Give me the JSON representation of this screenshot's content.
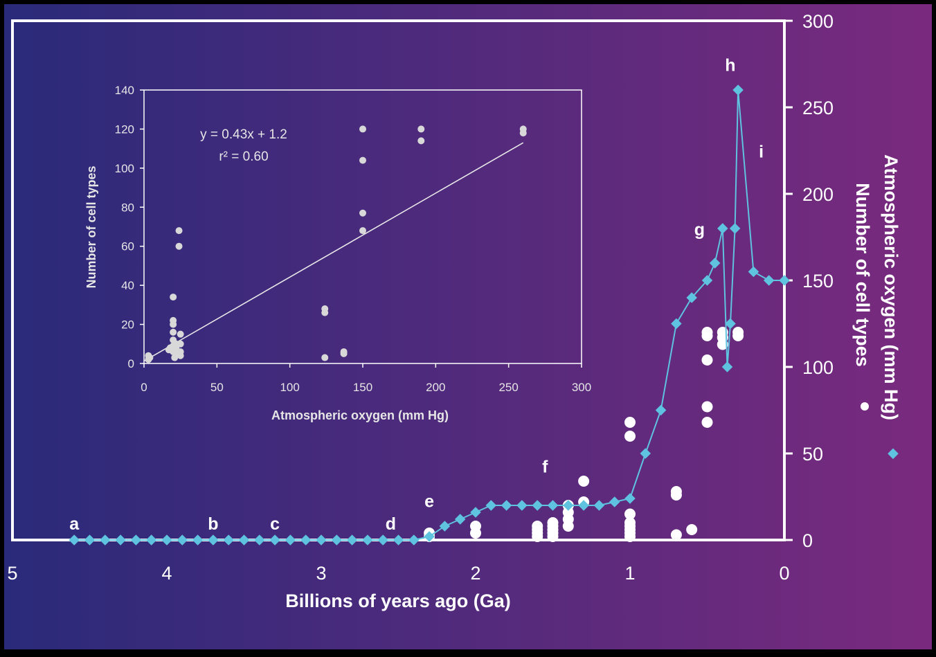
{
  "colors": {
    "bg_left": "#2a2a7a",
    "bg_right": "#7a2a7e",
    "frame": "#ffffff",
    "oxygen_series": "#5fc3df",
    "cells_series": "#ffffff",
    "inset_frame": "#ffffff",
    "inset_points": "#d8d8d8",
    "inset_text": "#e6e6e6"
  },
  "chart_data": [
    {
      "type": "line",
      "title": "",
      "xlabel": "Billions of years ago (Ga)",
      "ylabel": "Atmospheric oxygen (mm Hg)",
      "ylabel2": "Number of cell types",
      "xlim": [
        5,
        0
      ],
      "ylim": [
        0,
        300
      ],
      "x_ticks": [
        "5",
        "4",
        "3",
        "2",
        "1",
        "0"
      ],
      "y_ticks": [
        "0",
        "50",
        "100",
        "150",
        "200",
        "250",
        "300"
      ],
      "series": [
        {
          "name": "Atmospheric oxygen (mm Hg)",
          "marker": "diamond",
          "points": [
            [
              4.6,
              0
            ],
            [
              4.5,
              0
            ],
            [
              4.4,
              0
            ],
            [
              4.3,
              0
            ],
            [
              4.2,
              0
            ],
            [
              4.1,
              0
            ],
            [
              4.0,
              0
            ],
            [
              3.9,
              0
            ],
            [
              3.8,
              0
            ],
            [
              3.7,
              0
            ],
            [
              3.6,
              0
            ],
            [
              3.5,
              0
            ],
            [
              3.4,
              0
            ],
            [
              3.3,
              0
            ],
            [
              3.2,
              0
            ],
            [
              3.1,
              0
            ],
            [
              3.0,
              0
            ],
            [
              2.9,
              0
            ],
            [
              2.8,
              0
            ],
            [
              2.7,
              0
            ],
            [
              2.6,
              0
            ],
            [
              2.5,
              0
            ],
            [
              2.4,
              0
            ],
            [
              2.3,
              2
            ],
            [
              2.2,
              8
            ],
            [
              2.1,
              12
            ],
            [
              2.0,
              16
            ],
            [
              1.9,
              20
            ],
            [
              1.8,
              20
            ],
            [
              1.7,
              20
            ],
            [
              1.6,
              20
            ],
            [
              1.5,
              20
            ],
            [
              1.4,
              20
            ],
            [
              1.3,
              20
            ],
            [
              1.2,
              20
            ],
            [
              1.1,
              22
            ],
            [
              1.0,
              24
            ],
            [
              0.9,
              50
            ],
            [
              0.8,
              75
            ],
            [
              0.7,
              125
            ],
            [
              0.6,
              140
            ],
            [
              0.5,
              150
            ],
            [
              0.45,
              160
            ],
            [
              0.4,
              180
            ],
            [
              0.37,
              100
            ],
            [
              0.35,
              125
            ],
            [
              0.32,
              180
            ],
            [
              0.3,
              260
            ],
            [
              0.2,
              155
            ],
            [
              0.1,
              150
            ],
            [
              0.0,
              150
            ]
          ]
        },
        {
          "name": "Number of cell types",
          "marker": "circle",
          "points": [
            [
              2.3,
              2
            ],
            [
              2.3,
              4
            ],
            [
              2.0,
              4
            ],
            [
              2.0,
              8
            ],
            [
              1.6,
              2
            ],
            [
              1.6,
              4
            ],
            [
              1.6,
              6
            ],
            [
              1.6,
              8
            ],
            [
              1.5,
              2
            ],
            [
              1.5,
              4
            ],
            [
              1.5,
              6
            ],
            [
              1.5,
              8
            ],
            [
              1.5,
              10
            ],
            [
              1.4,
              8
            ],
            [
              1.4,
              12
            ],
            [
              1.4,
              16
            ],
            [
              1.4,
              20
            ],
            [
              1.3,
              22
            ],
            [
              1.3,
              34
            ],
            [
              1.0,
              2
            ],
            [
              1.0,
              4
            ],
            [
              1.0,
              6
            ],
            [
              1.0,
              8
            ],
            [
              1.0,
              10
            ],
            [
              1.0,
              15
            ],
            [
              1.0,
              60
            ],
            [
              1.0,
              68
            ],
            [
              0.7,
              3
            ],
            [
              0.7,
              26
            ],
            [
              0.7,
              28
            ],
            [
              0.6,
              6
            ],
            [
              0.5,
              68
            ],
            [
              0.5,
              77
            ],
            [
              0.5,
              104
            ],
            [
              0.5,
              118
            ],
            [
              0.5,
              120
            ],
            [
              0.4,
              113
            ],
            [
              0.4,
              117
            ],
            [
              0.4,
              120
            ],
            [
              0.3,
              118
            ],
            [
              0.3,
              120
            ]
          ]
        }
      ],
      "annotations": [
        {
          "label": "a",
          "x": 4.6,
          "y": 10
        },
        {
          "label": "b",
          "x": 3.7,
          "y": 10
        },
        {
          "label": "c",
          "x": 3.3,
          "y": 10
        },
        {
          "label": "d",
          "x": 2.55,
          "y": 10
        },
        {
          "label": "e",
          "x": 2.3,
          "y": 23
        },
        {
          "label": "f",
          "x": 1.55,
          "y": 43
        },
        {
          "label": "g",
          "x": 0.55,
          "y": 180
        },
        {
          "label": "h",
          "x": 0.35,
          "y": 275
        },
        {
          "label": "i",
          "x": 0.15,
          "y": 225
        }
      ],
      "legend": "right side, vertical axis label"
    },
    {
      "type": "scatter",
      "title": "",
      "xlabel": "Atmospheric oxygen (mm Hg)",
      "ylabel": "Number of cell types",
      "xlim": [
        0,
        300
      ],
      "ylim": [
        0,
        140
      ],
      "x_ticks": [
        "0",
        "50",
        "100",
        "150",
        "200",
        "250",
        "300"
      ],
      "y_ticks": [
        "0",
        "20",
        "40",
        "60",
        "80",
        "100",
        "120",
        "140"
      ],
      "equation": "y = 0.43x + 1.2",
      "r2": "r² = 0.60",
      "fit": {
        "slope": 0.43,
        "intercept": 1.2,
        "x_range": [
          0,
          260
        ]
      },
      "points": [
        [
          3,
          2
        ],
        [
          3,
          4
        ],
        [
          4,
          3
        ],
        [
          17,
          7
        ],
        [
          18,
          8
        ],
        [
          20,
          6
        ],
        [
          20,
          9
        ],
        [
          20,
          12
        ],
        [
          20,
          16
        ],
        [
          20,
          20
        ],
        [
          20,
          22
        ],
        [
          20,
          34
        ],
        [
          21,
          3
        ],
        [
          22,
          5
        ],
        [
          22,
          8
        ],
        [
          22,
          10
        ],
        [
          24,
          60
        ],
        [
          24,
          68
        ],
        [
          25,
          4
        ],
        [
          25,
          6
        ],
        [
          25,
          10
        ],
        [
          25,
          15
        ],
        [
          124,
          3
        ],
        [
          124,
          26
        ],
        [
          124,
          28
        ],
        [
          137,
          5
        ],
        [
          137,
          6
        ],
        [
          150,
          68
        ],
        [
          150,
          77
        ],
        [
          150,
          104
        ],
        [
          150,
          120
        ],
        [
          190,
          114
        ],
        [
          190,
          120
        ],
        [
          260,
          118
        ],
        [
          260,
          120
        ]
      ]
    }
  ]
}
